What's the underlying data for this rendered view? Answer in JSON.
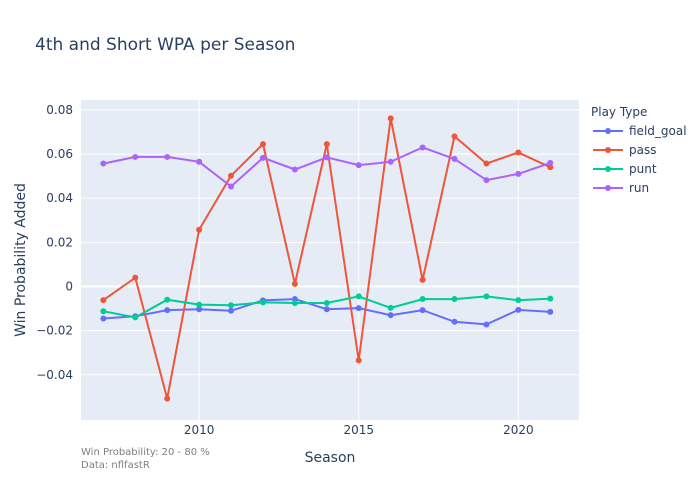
{
  "chart_data": {
    "type": "line",
    "title": "4th and Short WPA per Season",
    "xlabel": "Season",
    "ylabel": "Win Probability Added",
    "xlim": [
      2006.3,
      2021.9
    ],
    "ylim": [
      -0.0605,
      0.0845
    ],
    "x_ticks": [
      2010,
      2015,
      2020
    ],
    "y_ticks": [
      -0.04,
      -0.02,
      0,
      0.02,
      0.04,
      0.06,
      0.08
    ],
    "y_tick_labels": [
      "−0.04",
      "−0.02",
      "0",
      "0.02",
      "0.04",
      "0.06",
      "0.08"
    ],
    "grid": true,
    "legend": {
      "title": "Play Type",
      "position": "right"
    },
    "x": [
      2007,
      2008,
      2009,
      2010,
      2011,
      2012,
      2013,
      2014,
      2015,
      2016,
      2017,
      2018,
      2019,
      2020,
      2021
    ],
    "series": [
      {
        "name": "field_goal",
        "color": "#636efa",
        "values": [
          -0.0145,
          -0.0135,
          -0.0107,
          -0.0103,
          -0.011,
          -0.0063,
          -0.0057,
          -0.0103,
          -0.0098,
          -0.013,
          -0.0107,
          -0.016,
          -0.0172,
          -0.0106,
          -0.0115
        ]
      },
      {
        "name": "pass",
        "color": "#ef553b",
        "values": [
          -0.0062,
          0.004,
          -0.0508,
          0.0257,
          0.0502,
          0.0645,
          0.0012,
          0.0645,
          -0.0335,
          0.0762,
          0.003,
          0.068,
          0.0557,
          0.0607,
          0.054
        ]
      },
      {
        "name": "punt",
        "color": "#00cc96",
        "values": [
          -0.0112,
          -0.014,
          -0.006,
          -0.0082,
          -0.0085,
          -0.0072,
          -0.0075,
          -0.0075,
          -0.0045,
          -0.0097,
          -0.0057,
          -0.0057,
          -0.0045,
          -0.0062,
          -0.0055
        ]
      },
      {
        "name": "run",
        "color": "#ab63fa",
        "values": [
          0.0557,
          0.0587,
          0.0587,
          0.0565,
          0.0453,
          0.0583,
          0.053,
          0.0585,
          0.055,
          0.0565,
          0.063,
          0.0578,
          0.0482,
          0.051,
          0.056
        ]
      }
    ],
    "annotations": [
      "Win Probability: 20 - 80 %",
      "Data: nflfastR"
    ]
  }
}
